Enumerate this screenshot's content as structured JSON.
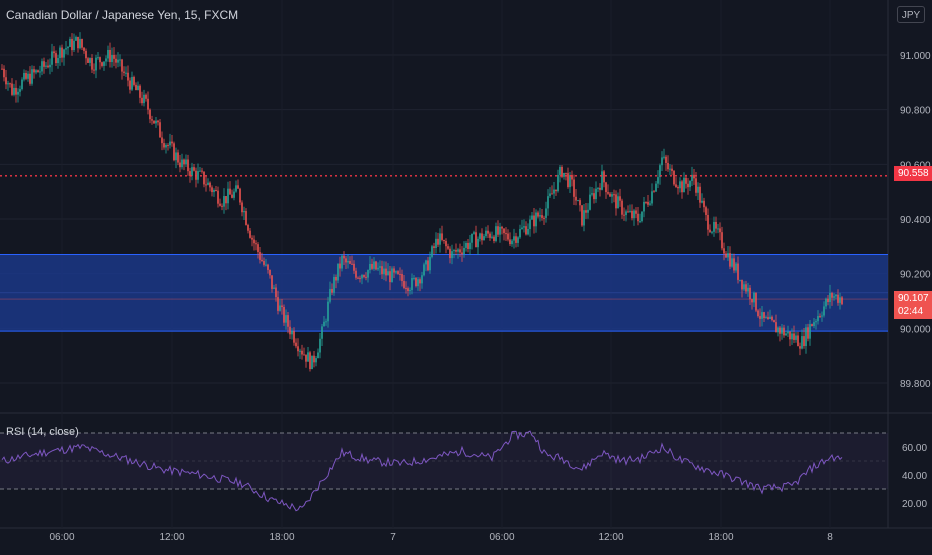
{
  "header": {
    "symbol_title": "Canadian Dollar / Japanese Yen, 15, FXCM",
    "currency_button": "JPY"
  },
  "rsi": {
    "title": "RSI (14, close)",
    "ticks": [
      "60.00",
      "40.00",
      "20.00"
    ]
  },
  "price_axis": {
    "ticks": [
      "91.000",
      "90.800",
      "90.600",
      "90.400",
      "90.200",
      "90.000",
      "89.800"
    ]
  },
  "time_axis": {
    "labels": [
      "06:00",
      "12:00",
      "18:00",
      "7",
      "06:00",
      "12:00",
      "18:00",
      "8"
    ]
  },
  "tags": {
    "horizontal_line_price": "90.558",
    "last_price": "90.107",
    "countdown": "02:44"
  },
  "colors": {
    "background": "#131722",
    "up_candle": "#26a69a",
    "down_candle": "#ef5350",
    "zone_fill": "#1e3a8a",
    "zone_border": "#2962ff",
    "rsi_line": "#7e57c2",
    "line_red": "#f23645"
  },
  "chart_data": {
    "type": "candlestick",
    "title": "Canadian Dollar / Japanese Yen, 15, FXCM",
    "ylim": [
      89.72,
      91.2
    ],
    "horizontal_line": 90.558,
    "zone": [
      89.99,
      90.27
    ],
    "last_price": 90.107,
    "close_path": [
      [
        0,
        90.95
      ],
      [
        5,
        90.87
      ],
      [
        10,
        90.9
      ],
      [
        20,
        90.95
      ],
      [
        30,
        91.02
      ],
      [
        38,
        91.05
      ],
      [
        45,
        90.97
      ],
      [
        55,
        91.0
      ],
      [
        62,
        90.92
      ],
      [
        72,
        90.82
      ],
      [
        80,
        90.7
      ],
      [
        90,
        90.6
      ],
      [
        100,
        90.55
      ],
      [
        110,
        90.47
      ],
      [
        118,
        90.5
      ],
      [
        125,
        90.33
      ],
      [
        133,
        90.2
      ],
      [
        140,
        90.05
      ],
      [
        150,
        89.92
      ],
      [
        155,
        89.87
      ],
      [
        160,
        89.98
      ],
      [
        165,
        90.15
      ],
      [
        170,
        90.25
      ],
      [
        178,
        90.2
      ],
      [
        186,
        90.22
      ],
      [
        195,
        90.19
      ],
      [
        205,
        90.16
      ],
      [
        212,
        90.22
      ],
      [
        218,
        90.33
      ],
      [
        225,
        90.27
      ],
      [
        235,
        90.32
      ],
      [
        245,
        90.35
      ],
      [
        255,
        90.33
      ],
      [
        265,
        90.39
      ],
      [
        272,
        90.44
      ],
      [
        280,
        90.58
      ],
      [
        285,
        90.52
      ],
      [
        290,
        90.4
      ],
      [
        295,
        90.48
      ],
      [
        300,
        90.55
      ],
      [
        305,
        90.48
      ],
      [
        312,
        90.42
      ],
      [
        318,
        90.4
      ],
      [
        325,
        90.5
      ],
      [
        330,
        90.62
      ],
      [
        335,
        90.56
      ],
      [
        340,
        90.52
      ],
      [
        346,
        90.55
      ],
      [
        352,
        90.4
      ],
      [
        358,
        90.34
      ],
      [
        365,
        90.24
      ],
      [
        370,
        90.17
      ],
      [
        375,
        90.12
      ],
      [
        380,
        90.03
      ],
      [
        385,
        90.01
      ],
      [
        390,
        89.99
      ],
      [
        395,
        89.97
      ],
      [
        400,
        89.95
      ],
      [
        405,
        90.02
      ],
      [
        410,
        90.07
      ],
      [
        415,
        90.12
      ],
      [
        420,
        90.11
      ]
    ],
    "rsi_path": [
      [
        0,
        50
      ],
      [
        20,
        56
      ],
      [
        40,
        60
      ],
      [
        60,
        52
      ],
      [
        80,
        44
      ],
      [
        100,
        40
      ],
      [
        120,
        34
      ],
      [
        135,
        22
      ],
      [
        150,
        15
      ],
      [
        160,
        36
      ],
      [
        170,
        56
      ],
      [
        185,
        50
      ],
      [
        200,
        48
      ],
      [
        215,
        52
      ],
      [
        230,
        57
      ],
      [
        245,
        52
      ],
      [
        255,
        68
      ],
      [
        265,
        70
      ],
      [
        272,
        54
      ],
      [
        280,
        52
      ],
      [
        290,
        44
      ],
      [
        300,
        56
      ],
      [
        310,
        50
      ],
      [
        320,
        52
      ],
      [
        330,
        60
      ],
      [
        340,
        50
      ],
      [
        352,
        44
      ],
      [
        365,
        38
      ],
      [
        380,
        30
      ],
      [
        395,
        32
      ],
      [
        405,
        45
      ],
      [
        415,
        53
      ],
      [
        420,
        51
      ]
    ]
  }
}
